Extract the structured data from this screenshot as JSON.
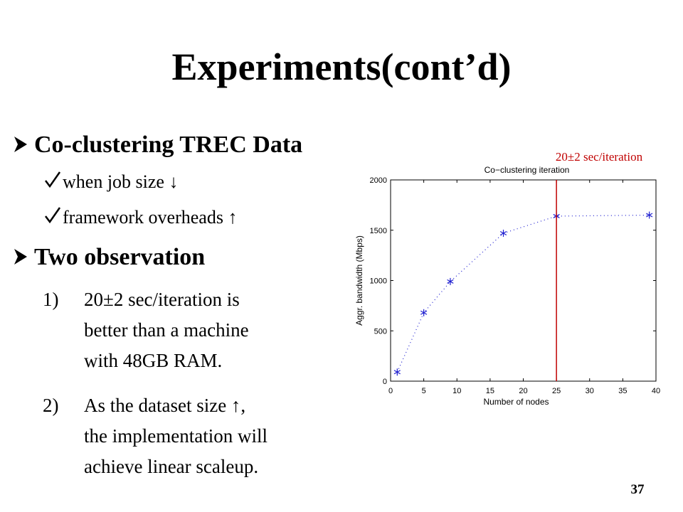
{
  "title": "Experiments(cont’d)",
  "sections": [
    {
      "heading": "Co-clustering TREC Data",
      "items": [
        {
          "lines": [
            "when job size ↓"
          ]
        },
        {
          "lines": [
            "framework overheads ↑"
          ]
        }
      ]
    },
    {
      "heading": "Two observation",
      "items": [
        {
          "number": "1)",
          "lines": [
            "20±2 sec/iteration is",
            "better than a machine",
            "with 48GB RAM."
          ]
        },
        {
          "number": "2)",
          "lines": [
            "As the dataset size ↑,",
            "the implementation will",
            "achieve linear scaleup."
          ]
        }
      ]
    }
  ],
  "page_number": "37",
  "chart_data": {
    "type": "scatter",
    "title": "Co−clustering iteration",
    "x_label": "Number of nodes",
    "y_label": "Aggr. bandwidth (Mbps)",
    "x": [
      1,
      5,
      9,
      17,
      25,
      39
    ],
    "series": [
      {
        "color": "#1f1fd0",
        "values": [
          90,
          680,
          990,
          1470,
          1640,
          1650
        ]
      }
    ],
    "xlim": [
      0,
      40
    ],
    "xticks": [
      0,
      5,
      10,
      15,
      20,
      25,
      30,
      35,
      40
    ],
    "ylim": [
      0,
      2000
    ],
    "yticks": [
      0,
      500,
      1000,
      1500,
      2000
    ],
    "vline": {
      "x": 25,
      "label": "20±2 sec/iteration",
      "color": "#c00000"
    }
  }
}
